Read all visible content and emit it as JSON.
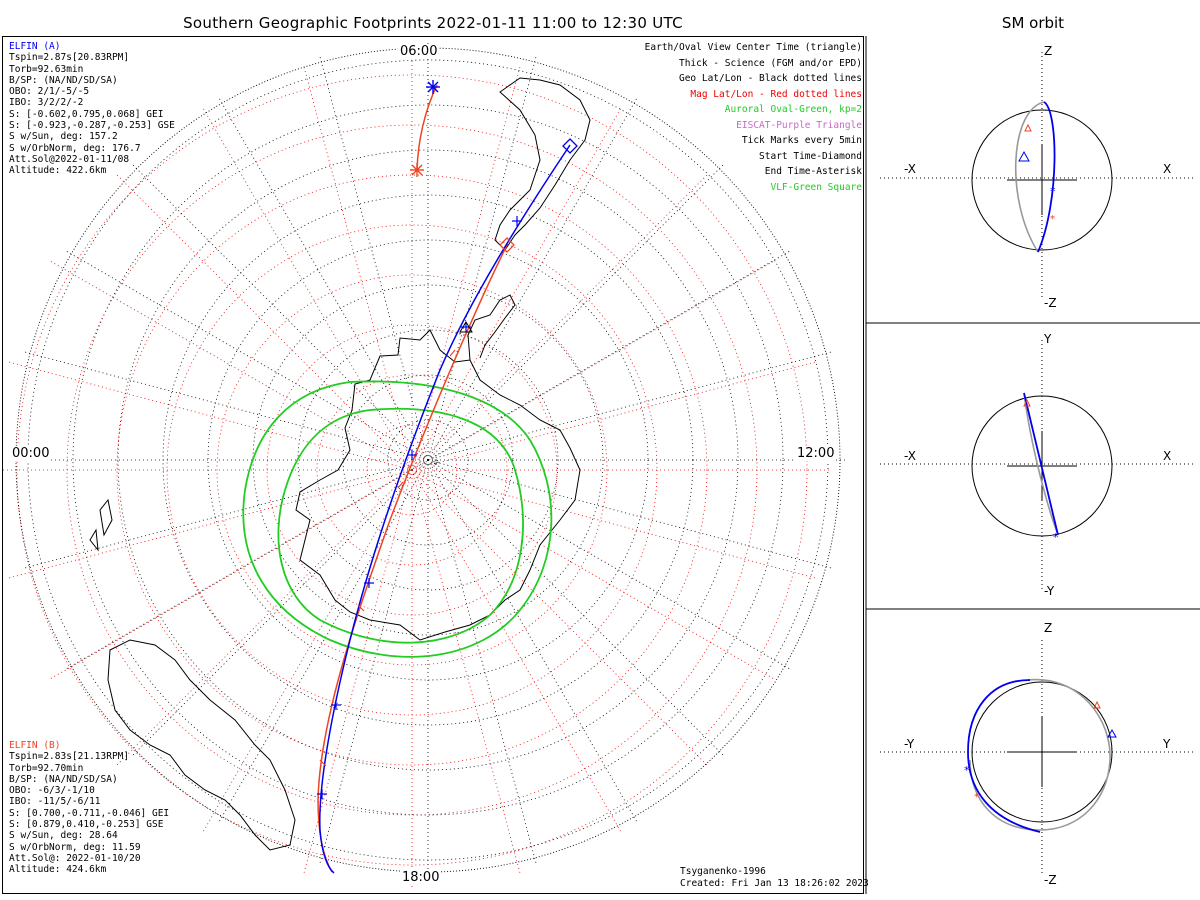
{
  "title": "Southern Geographic Footprints 2022-01-11 11:00 to 12:30 UTC",
  "sm_title": "SM orbit",
  "time_labels": {
    "top": "06:00",
    "left": "00:00",
    "right": "12:00",
    "bottom": "18:00"
  },
  "elfin_a": {
    "name": "ELFIN (A)",
    "color": "#0000ee",
    "lines": [
      "Tspin=2.87s[20.83RPM]",
      "Torb=92.63min",
      "B/SP: (NA/ND/SD/SA)",
      "OBO: 2/1/-5/-5",
      "IBO: 3/2/2/-2",
      "S: [-0.602,0.795,0.068] GEI",
      "S: [-0.923,-0.287,-0.253] GSE",
      "S w/Sun, deg: 157.2",
      "S w/OrbNorm, deg: 176.7",
      "Att.Sol@2022-01-11/08",
      "Altitude: 422.6km"
    ]
  },
  "elfin_b": {
    "name": "ELFIN (B)",
    "color": "#ee4422",
    "lines": [
      "Tspin=2.83s[21.13RPM]",
      "Torb=92.70min",
      "B/SP: (NA/ND/SD/SA)",
      "OBO: -6/3/-1/10",
      "IBO: -11/5/-6/11",
      "S: [0.700,-0.711,-0.046] GEI",
      "S: [0.879,0.410,-0.253] GSE",
      "S w/Sun, deg: 28.64",
      "S w/OrbNorm, deg: 11.59",
      "Att.Sol@: 2022-01-10/20",
      "Altitude: 424.6km"
    ]
  },
  "legend": [
    {
      "text": "Earth/Oval View Center Time (triangle)",
      "color": "#000000"
    },
    {
      "text": "Thick - Science (FGM and/or EPD)",
      "color": "#000000"
    },
    {
      "text": "Geo Lat/Lon - Black dotted lines",
      "color": "#000000"
    },
    {
      "text": "Mag Lat/Lon - Red dotted lines",
      "color": "#ee0000"
    },
    {
      "text": "Auroral Oval-Green, kp=2",
      "color": "#22cc22"
    },
    {
      "text": "EISCAT-Purple Triangle",
      "color": "#cc66cc"
    },
    {
      "text": "Tick Marks every 5min",
      "color": "#000000"
    },
    {
      "text": "Start Time-Diamond",
      "color": "#000000"
    },
    {
      "text": "End Time-Asterisk",
      "color": "#000000"
    },
    {
      "text": "VLF-Green Square",
      "color": "#22cc22"
    }
  ],
  "footer": {
    "model": "Tsyganenko-1996",
    "created": "Created: Fri Jan 13 18:26:02 2023"
  },
  "panels": [
    {
      "top": "Z",
      "bottom": "-Z",
      "left": "-X",
      "right": "X"
    },
    {
      "top": "Y",
      "bottom": "-Y",
      "left": "-X",
      "right": "X"
    },
    {
      "top": "Z",
      "bottom": "-Z",
      "left": "-Y",
      "right": "Y"
    }
  ],
  "colors": {
    "elfin_a": "#0000ee",
    "elfin_b": "#ee4422",
    "oval": "#22cc22",
    "mag_grid": "#ee0000",
    "geo_grid": "#000000"
  }
}
